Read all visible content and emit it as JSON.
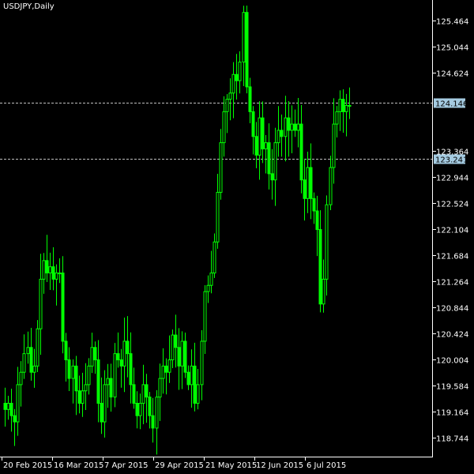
{
  "title": "USDJPY,Daily",
  "colors": {
    "background": "#000000",
    "candle": "#00ff00",
    "axis": "#ffffff",
    "grid_line": "#c0c0c0",
    "price_tag_bg": "#a5cbe1",
    "price_tag_text": "#000000"
  },
  "chart_data": {
    "type": "candlestick",
    "symbol": "USDJPY",
    "timeframe": "Daily",
    "ylim": [
      118.44,
      125.8
    ],
    "y_ticks": [
      "125.464",
      "125.044",
      "124.624",
      "123.364",
      "122.944",
      "122.524",
      "122.104",
      "121.684",
      "121.264",
      "120.844",
      "120.424",
      "120.004",
      "119.584",
      "119.164",
      "118.744"
    ],
    "x_labels": [
      "20 Feb 2015",
      "16 Mar 2015",
      "7 Apr 2015",
      "29 Apr 2015",
      "21 May 2015",
      "12 Jun 2015",
      "6 Jul 2015"
    ],
    "levels": [
      {
        "value": "124.146",
        "style": "dashed"
      },
      {
        "value": "123.241",
        "style": "dashed"
      }
    ],
    "approx_close_path": [
      119.2,
      119.3,
      119.1,
      119.0,
      119.6,
      119.8,
      120.1,
      120.2,
      119.8,
      119.9,
      120.5,
      121.3,
      121.6,
      121.4,
      121.5,
      121.3,
      121.4,
      121.4,
      120.3,
      120.0,
      119.7,
      119.9,
      119.5,
      119.3,
      119.5,
      119.6,
      119.9,
      120.2,
      120.0,
      119.3,
      119.0,
      119.6,
      119.7,
      119.4,
      120.1,
      120.0,
      119.9,
      120.3,
      120.1,
      119.6,
      119.3,
      119.1,
      119.3,
      119.6,
      119.4,
      119.1,
      118.9,
      119.4,
      119.7,
      119.9,
      119.8,
      120.0,
      120.4,
      120.2,
      119.9,
      120.3,
      119.8,
      119.6,
      119.9,
      119.3,
      119.6,
      120.3,
      121.1,
      121.2,
      121.4,
      121.9,
      122.7,
      123.5,
      124.0,
      124.2,
      124.3,
      124.6,
      124.5,
      124.8,
      125.6,
      124.4,
      124.0,
      123.6,
      123.3,
      123.9,
      123.4,
      123.5,
      123.0,
      122.9,
      123.5,
      123.7,
      123.6,
      123.9,
      123.7,
      123.8,
      123.7,
      123.8,
      122.9,
      122.6,
      123.1,
      122.6,
      122.4,
      122.1,
      120.9,
      121.3,
      122.5,
      123.1,
      123.8,
      124.0,
      124.2,
      124.0,
      124.1,
      124.1
    ]
  }
}
